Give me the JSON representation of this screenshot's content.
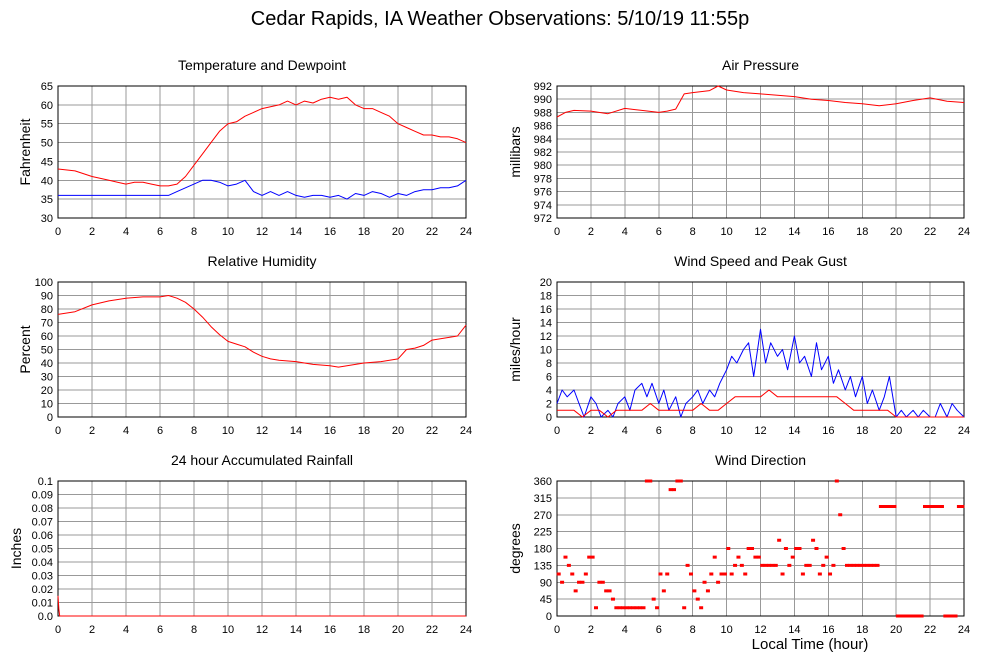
{
  "page": {
    "title": "Cedar Rapids, IA Weather Observations: 5/10/19 11:55p",
    "xlabel": "Local Time (hour)"
  },
  "colors": {
    "red": "#ff0000",
    "blue": "#0000ff",
    "grid": "#999999",
    "frame": "#000000"
  },
  "chart_data": [
    {
      "id": "temp",
      "type": "line",
      "title": "Temperature and Dewpoint",
      "xlabel": "",
      "ylabel": "Fahrenheit",
      "xlim": [
        0,
        24
      ],
      "ylim": [
        30,
        65
      ],
      "xticks": [
        0,
        2,
        4,
        6,
        8,
        10,
        12,
        14,
        16,
        18,
        20,
        22,
        24
      ],
      "yticks": [
        30,
        35,
        40,
        45,
        50,
        55,
        60,
        65
      ],
      "grid": true,
      "series": [
        {
          "color": "#ff0000",
          "style": "line",
          "x": [
            0,
            1,
            2,
            3,
            3.5,
            4,
            4.5,
            5,
            5.5,
            6,
            6.5,
            7,
            7.5,
            8,
            8.5,
            9,
            9.5,
            10,
            10.5,
            11,
            11.5,
            12,
            12.5,
            13,
            13.5,
            14,
            14.5,
            15,
            15.5,
            16,
            16.5,
            17,
            17.5,
            18,
            18.5,
            19,
            19.5,
            20,
            20.5,
            21,
            21.5,
            22,
            22.5,
            23,
            23.5,
            24
          ],
          "y": [
            43,
            42.5,
            41,
            40,
            39.5,
            39,
            39.5,
            39.5,
            39,
            38.5,
            38.5,
            39,
            41,
            44,
            47,
            50,
            53,
            55,
            55.5,
            57,
            58,
            59,
            59.5,
            60,
            61,
            60,
            61,
            60.5,
            61.5,
            62,
            61.5,
            62,
            60,
            59,
            59,
            58,
            57,
            55,
            54,
            53,
            52,
            52,
            51.5,
            51.5,
            51,
            50
          ]
        },
        {
          "color": "#0000ff",
          "style": "line",
          "x": [
            0,
            1,
            2,
            3,
            4,
            5,
            6,
            6.5,
            7,
            7.5,
            8,
            8.5,
            9,
            9.5,
            10,
            10.5,
            11,
            11.5,
            12,
            12.5,
            13,
            13.5,
            14,
            14.5,
            15,
            15.5,
            16,
            16.5,
            17,
            17.5,
            18,
            18.5,
            19,
            19.5,
            20,
            20.5,
            21,
            21.5,
            22,
            22.5,
            23,
            23.5,
            24
          ],
          "y": [
            36,
            36,
            36,
            36,
            36,
            36,
            36,
            36,
            37,
            38,
            39,
            40,
            40,
            39.5,
            38.5,
            39,
            40,
            37,
            36,
            37,
            36,
            37,
            36,
            35.5,
            36,
            36,
            35.5,
            36,
            35,
            36.5,
            36,
            37,
            36.5,
            35.5,
            36.5,
            36,
            37,
            37.5,
            37.5,
            38,
            38,
            38.5,
            40
          ]
        }
      ]
    },
    {
      "id": "press",
      "type": "line",
      "title": "Air Pressure",
      "xlabel": "",
      "ylabel": "millibars",
      "xlim": [
        0,
        24
      ],
      "ylim": [
        972,
        992
      ],
      "xticks": [
        0,
        2,
        4,
        6,
        8,
        10,
        12,
        14,
        16,
        18,
        20,
        22,
        24
      ],
      "yticks": [
        972,
        974,
        976,
        978,
        980,
        982,
        984,
        986,
        988,
        990,
        992
      ],
      "grid": true,
      "series": [
        {
          "color": "#ff0000",
          "style": "line",
          "x": [
            0,
            0.5,
            1,
            2,
            3,
            4,
            5,
            6,
            6.5,
            7,
            7.5,
            8,
            9,
            9.5,
            10,
            11,
            12,
            13,
            14,
            15,
            16,
            17,
            18,
            19,
            20,
            21,
            22,
            23,
            24
          ],
          "y": [
            987.3,
            988,
            988.3,
            988.2,
            987.8,
            988.6,
            988.3,
            988,
            988.2,
            988.5,
            990.8,
            991,
            991.3,
            992,
            991.4,
            991,
            990.8,
            990.6,
            990.4,
            990,
            989.8,
            989.5,
            989.3,
            989,
            989.3,
            989.8,
            990.2,
            989.7,
            989.5
          ]
        }
      ]
    },
    {
      "id": "rh",
      "type": "line",
      "title": "Relative Humidity",
      "xlabel": "",
      "ylabel": "Percent",
      "xlim": [
        0,
        24
      ],
      "ylim": [
        0,
        100
      ],
      "xticks": [
        0,
        2,
        4,
        6,
        8,
        10,
        12,
        14,
        16,
        18,
        20,
        22,
        24
      ],
      "yticks": [
        0,
        10,
        20,
        30,
        40,
        50,
        60,
        70,
        80,
        90,
        100
      ],
      "grid": true,
      "series": [
        {
          "color": "#ff0000",
          "style": "line",
          "x": [
            0,
            1,
            2,
            3,
            4,
            5,
            6,
            6.5,
            7,
            7.5,
            8,
            8.5,
            9,
            9.5,
            10,
            10.5,
            11,
            11.5,
            12,
            12.5,
            13,
            14,
            15,
            16,
            16.5,
            17,
            18,
            19,
            20,
            20.5,
            21,
            21.5,
            22,
            22.5,
            23,
            23.5,
            24
          ],
          "y": [
            76,
            78,
            83,
            86,
            88,
            89,
            89,
            90,
            88,
            85,
            80,
            74,
            67,
            61,
            56,
            54,
            52,
            48,
            45,
            43,
            42,
            41,
            39,
            38,
            37,
            38,
            40,
            41,
            43,
            50,
            51,
            53,
            57,
            58,
            59,
            60,
            68
          ]
        }
      ]
    },
    {
      "id": "wind",
      "type": "line",
      "title": "Wind Speed and Peak Gust",
      "xlabel": "",
      "ylabel": "miles/hour",
      "xlim": [
        0,
        24
      ],
      "ylim": [
        0,
        20
      ],
      "xticks": [
        0,
        2,
        4,
        6,
        8,
        10,
        12,
        14,
        16,
        18,
        20,
        22,
        24
      ],
      "yticks": [
        0,
        2,
        4,
        6,
        8,
        10,
        12,
        14,
        16,
        18,
        20
      ],
      "grid": true,
      "series": [
        {
          "color": "#0000ff",
          "style": "line",
          "x": [
            0,
            0.3,
            0.6,
            1,
            1.3,
            1.6,
            2,
            2.3,
            2.6,
            3,
            3.3,
            3.6,
            4,
            4.3,
            4.6,
            5,
            5.3,
            5.6,
            6,
            6.3,
            6.6,
            7,
            7.3,
            7.6,
            8,
            8.3,
            8.6,
            9,
            9.3,
            9.6,
            10,
            10.3,
            10.6,
            11,
            11.3,
            11.6,
            12,
            12.3,
            12.6,
            13,
            13.3,
            13.6,
            14,
            14.3,
            14.6,
            15,
            15.3,
            15.6,
            16,
            16.3,
            16.6,
            17,
            17.3,
            17.6,
            18,
            18.3,
            18.6,
            19,
            19.3,
            19.6,
            20,
            20.3,
            20.6,
            21,
            21.3,
            21.6,
            22,
            22.3,
            22.6,
            23,
            23.3,
            23.6,
            24
          ],
          "y": [
            2,
            4,
            3,
            4,
            2,
            0,
            3,
            2,
            0,
            1,
            0,
            2,
            3,
            1,
            4,
            5,
            3,
            5,
            2,
            4,
            1,
            3,
            0,
            2,
            3,
            4,
            2,
            4,
            3,
            5,
            7,
            9,
            8,
            10,
            11,
            6,
            13,
            8,
            11,
            9,
            10,
            7,
            12,
            8,
            9,
            6,
            11,
            7,
            9,
            5,
            7,
            4,
            6,
            3,
            6,
            2,
            4,
            1,
            3,
            6,
            0,
            1,
            0,
            1,
            0,
            1,
            0,
            0,
            2,
            0,
            2,
            1,
            0
          ]
        },
        {
          "color": "#ff0000",
          "style": "line",
          "x": [
            0,
            0.5,
            1,
            1.5,
            2,
            2.5,
            3,
            3.5,
            4,
            4.5,
            5,
            5.5,
            6,
            6.5,
            7,
            7.5,
            8,
            8.5,
            9,
            9.5,
            10,
            10.5,
            11,
            11.5,
            12,
            12.5,
            13,
            13.5,
            14,
            14.5,
            15,
            15.5,
            16,
            16.5,
            17,
            17.5,
            18,
            18.5,
            19,
            19.5,
            20,
            21,
            22,
            23,
            24
          ],
          "y": [
            1,
            1,
            1,
            0,
            1,
            1,
            0,
            1,
            1,
            1,
            1,
            2,
            1,
            1,
            1,
            1,
            1,
            2,
            1,
            1,
            2,
            3,
            3,
            3,
            3,
            4,
            3,
            3,
            3,
            3,
            3,
            3,
            3,
            3,
            2,
            1,
            1,
            1,
            1,
            1,
            0,
            0,
            0,
            0,
            0
          ]
        }
      ]
    },
    {
      "id": "rain",
      "type": "line",
      "title": "24 hour Accumulated Rainfall",
      "xlabel": "",
      "ylabel": "Inches",
      "xlim": [
        0,
        24
      ],
      "ylim": [
        0,
        0.1
      ],
      "xticks": [
        0,
        2,
        4,
        6,
        8,
        10,
        12,
        14,
        16,
        18,
        20,
        22,
        24
      ],
      "yticks": [
        0.0,
        0.01,
        0.02,
        0.03,
        0.04,
        0.05,
        0.06,
        0.07,
        0.08,
        0.09,
        0.1
      ],
      "ytick_labels": [
        "0.0",
        "0.01",
        "0.02",
        "0.03",
        "0.04",
        "0.05",
        "0.06",
        "0.07",
        "0.08",
        "0.09",
        "0.1"
      ],
      "grid": true,
      "series": [
        {
          "color": "#ff0000",
          "style": "line",
          "x": [
            0,
            0.05,
            0.1,
            1,
            24
          ],
          "y": [
            0.015,
            0.005,
            0,
            0,
            0
          ]
        }
      ]
    },
    {
      "id": "wdir",
      "type": "scatter",
      "title": "Wind Direction",
      "xlabel": "",
      "ylabel": "degrees",
      "xlim": [
        0,
        24
      ],
      "ylim": [
        0,
        360
      ],
      "xticks": [
        0,
        2,
        4,
        6,
        8,
        10,
        12,
        14,
        16,
        18,
        20,
        22,
        24
      ],
      "yticks": [
        0,
        45,
        90,
        135,
        180,
        225,
        270,
        315,
        360
      ],
      "grid": true,
      "series": [
        {
          "color": "#ff0000",
          "style": "dots",
          "x": [
            0.1,
            0.3,
            0.5,
            0.7,
            0.9,
            1.1,
            1.3,
            1.5,
            1.7,
            1.9,
            2.1,
            2.3,
            2.5,
            2.7,
            2.9,
            3.1,
            3.3,
            3.5,
            3.7,
            3.9,
            4.1,
            4.3,
            4.5,
            4.7,
            4.9,
            5.1,
            5.3,
            5.5,
            5.7,
            5.9,
            6.1,
            6.3,
            6.5,
            6.7,
            6.9,
            7.1,
            7.3,
            7.5,
            7.7,
            7.9,
            8.1,
            8.3,
            8.5,
            8.7,
            8.9,
            9.1,
            9.3,
            9.5,
            9.7,
            9.9,
            10.1,
            10.3,
            10.5,
            10.7,
            10.9,
            11.1,
            11.3,
            11.5,
            11.7,
            11.9,
            12.1,
            12.3,
            12.5,
            12.7,
            12.9,
            13.1,
            13.3,
            13.5,
            13.7,
            13.9,
            14.1,
            14.3,
            14.5,
            14.7,
            14.9,
            15.1,
            15.3,
            15.5,
            15.7,
            15.9,
            16.1,
            16.3,
            16.5,
            16.7,
            16.9,
            17.1,
            17.3,
            17.5,
            17.7,
            17.9,
            18.1,
            18.3,
            18.5,
            18.7,
            18.9,
            19.1,
            19.3,
            19.5,
            19.7,
            19.9,
            20.1,
            20.3,
            20.5,
            20.7,
            20.9,
            21.1,
            21.3,
            21.5,
            21.7,
            21.9,
            22.1,
            22.3,
            22.5,
            22.7,
            22.9,
            23.1,
            23.3,
            23.5,
            23.7,
            23.9
          ],
          "y": [
            112,
            90,
            157,
            135,
            112,
            67,
            90,
            90,
            112,
            157,
            157,
            22,
            90,
            90,
            67,
            67,
            45,
            22,
            22,
            22,
            22,
            22,
            22,
            22,
            22,
            22,
            360,
            360,
            45,
            22,
            112,
            67,
            112,
            337,
            337,
            360,
            360,
            22,
            135,
            112,
            67,
            45,
            22,
            90,
            67,
            112,
            157,
            90,
            112,
            112,
            180,
            112,
            135,
            157,
            135,
            112,
            180,
            180,
            157,
            157,
            135,
            135,
            135,
            135,
            135,
            202,
            112,
            180,
            135,
            157,
            180,
            180,
            112,
            135,
            135,
            202,
            180,
            112,
            135,
            157,
            112,
            135,
            360,
            270,
            180,
            135,
            135,
            135,
            135,
            135,
            135,
            135,
            135,
            135,
            135,
            292,
            292,
            292,
            292,
            292,
            0,
            0,
            0,
            0,
            0,
            0,
            0,
            0,
            292,
            292,
            292,
            292,
            292,
            292,
            0,
            0,
            0,
            0,
            292,
            292
          ]
        }
      ]
    }
  ]
}
